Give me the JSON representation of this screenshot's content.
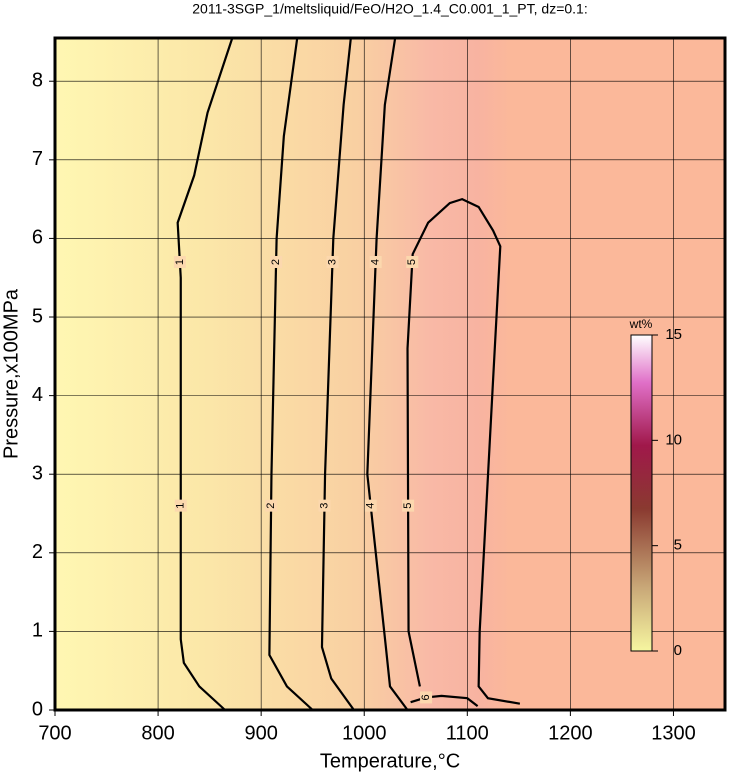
{
  "chart_data": {
    "type": "contour",
    "title": "2011-3SGP_1/meltsliquid/FeO/H2O_1.4_C0.001_1_PT, dz=0.1:",
    "x_label": "Temperature,°C",
    "y_label": "Pressure,x100MPa",
    "xlim": [
      700,
      1350
    ],
    "ylim": [
      0,
      8.55
    ],
    "xticks": [
      700,
      800,
      900,
      1000,
      1100,
      1200,
      1300
    ],
    "yticks": [
      0,
      1,
      2,
      3,
      4,
      5,
      6,
      7,
      8
    ],
    "grid": true,
    "contours": [
      {
        "level": 1,
        "x": [
          865,
          840,
          825,
          822,
          822,
          822,
          819,
          835,
          848,
          872
        ],
        "y": [
          0,
          0.3,
          0.6,
          0.9,
          3,
          5.5,
          6.2,
          6.8,
          7.6,
          8.55
        ]
      },
      {
        "level": 2,
        "x": [
          950,
          925,
          908,
          910,
          915,
          922,
          935
        ],
        "y": [
          0,
          0.3,
          0.7,
          3,
          6,
          7.3,
          8.55
        ]
      },
      {
        "level": 3,
        "x": [
          990,
          968,
          959,
          962,
          970,
          980,
          987
        ],
        "y": [
          0,
          0.4,
          0.8,
          3,
          6,
          7.7,
          8.55
        ]
      },
      {
        "level": 4,
        "x": [
          1042,
          1025,
          1021,
          1003,
          1012,
          1020,
          1030
        ],
        "y": [
          0,
          0.3,
          0.8,
          3,
          6,
          7.7,
          8.55
        ]
      },
      {
        "level": 5,
        "x": [
          1054,
          1043,
          1042,
          1047,
          1062,
          1083,
          1095,
          1111,
          1125,
          1132,
          1125,
          1112,
          1111,
          1120,
          1151
        ],
        "y": [
          0.3,
          1,
          4.6,
          5.8,
          6.2,
          6.45,
          6.5,
          6.4,
          6.1,
          5.9,
          4.2,
          1,
          0.3,
          0.15,
          0.08
        ]
      },
      {
        "level": 6,
        "x": [
          1045,
          1060,
          1075,
          1100,
          1110
        ],
        "y": [
          0.1,
          0.16,
          0.18,
          0.15,
          0.05
        ]
      }
    ],
    "colorbar": {
      "label": "wt%",
      "lim": [
        0,
        15
      ],
      "ticks": [
        0,
        5,
        10,
        15
      ]
    }
  }
}
